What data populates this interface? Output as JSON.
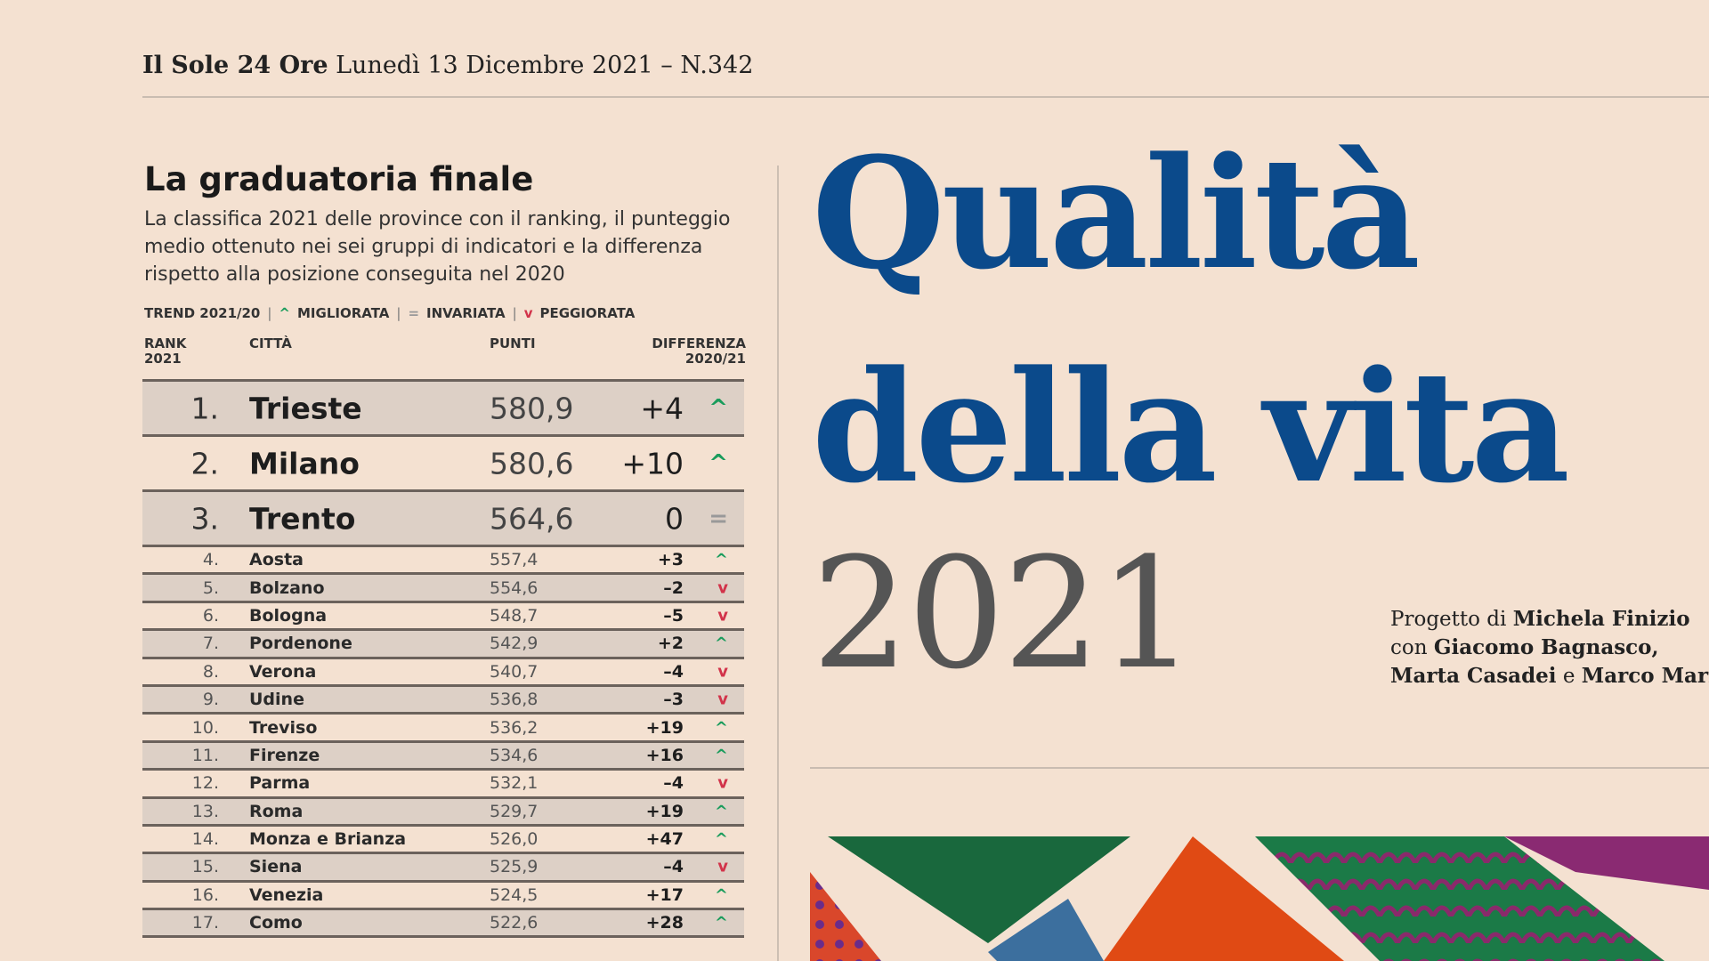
{
  "masthead": {
    "brand": "Il Sole 24 Ore",
    "date": "Lunedì 13 Dicembre 2021",
    "issue": "– N.342"
  },
  "ranking": {
    "title": "La graduatoria finale",
    "description": "La classifica 2021 delle province con il ranking, il punteggio medio ottenuto nei sei gruppi di indicatori e la differenza rispetto alla posizione conseguita nel 2020",
    "legend": {
      "label": "TREND 2021/20",
      "improved": "MIGLIORATA",
      "unchanged": "INVARIATA",
      "worsened": "PEGGIORATA"
    },
    "headers": {
      "rank": "RANK 2021",
      "city": "CITTÀ",
      "points": "PUNTI",
      "diff": "DIFFERENZA 2020/21"
    },
    "rows": [
      {
        "rank": "1.",
        "city": "Trieste",
        "points": "580,9",
        "diff": "+4",
        "trend": "up"
      },
      {
        "rank": "2.",
        "city": "Milano",
        "points": "580,6",
        "diff": "+10",
        "trend": "up"
      },
      {
        "rank": "3.",
        "city": "Trento",
        "points": "564,6",
        "diff": "0",
        "trend": "same"
      },
      {
        "rank": "4.",
        "city": "Aosta",
        "points": "557,4",
        "diff": "+3",
        "trend": "up"
      },
      {
        "rank": "5.",
        "city": "Bolzano",
        "points": "554,6",
        "diff": "–2",
        "trend": "down"
      },
      {
        "rank": "6.",
        "city": "Bologna",
        "points": "548,7",
        "diff": "–5",
        "trend": "down"
      },
      {
        "rank": "7.",
        "city": "Pordenone",
        "points": "542,9",
        "diff": "+2",
        "trend": "up"
      },
      {
        "rank": "8.",
        "city": "Verona",
        "points": "540,7",
        "diff": "–4",
        "trend": "down"
      },
      {
        "rank": "9.",
        "city": "Udine",
        "points": "536,8",
        "diff": "–3",
        "trend": "down"
      },
      {
        "rank": "10.",
        "city": "Treviso",
        "points": "536,2",
        "diff": "+19",
        "trend": "up"
      },
      {
        "rank": "11.",
        "city": "Firenze",
        "points": "534,6",
        "diff": "+16",
        "trend": "up"
      },
      {
        "rank": "12.",
        "city": "Parma",
        "points": "532,1",
        "diff": "–4",
        "trend": "down"
      },
      {
        "rank": "13.",
        "city": "Roma",
        "points": "529,7",
        "diff": "+19",
        "trend": "up"
      },
      {
        "rank": "14.",
        "city": "Monza e Brianza",
        "points": "526,0",
        "diff": "+47",
        "trend": "up"
      },
      {
        "rank": "15.",
        "city": "Siena",
        "points": "525,9",
        "diff": "–4",
        "trend": "down"
      },
      {
        "rank": "16.",
        "city": "Venezia",
        "points": "524,5",
        "diff": "+17",
        "trend": "up"
      },
      {
        "rank": "17.",
        "city": "Como",
        "points": "522,6",
        "diff": "+28",
        "trend": "up"
      }
    ]
  },
  "hero": {
    "line1": "Qualità",
    "line2": "della vita",
    "year": "2021"
  },
  "credits": {
    "prefix1": "Progetto di ",
    "author": "Michela Finizio",
    "prefix2": "con ",
    "coauthor1": "Giacomo Bagnasco,",
    "coauthor2": "Marta Casadei",
    "and": " e ",
    "coauthor3": "Marco Mariani"
  },
  "colors": {
    "background": "#f4e1d1",
    "hero_blue": "#0b4a8b",
    "trend_up": "#1a9c5c",
    "trend_down": "#d2334a"
  }
}
